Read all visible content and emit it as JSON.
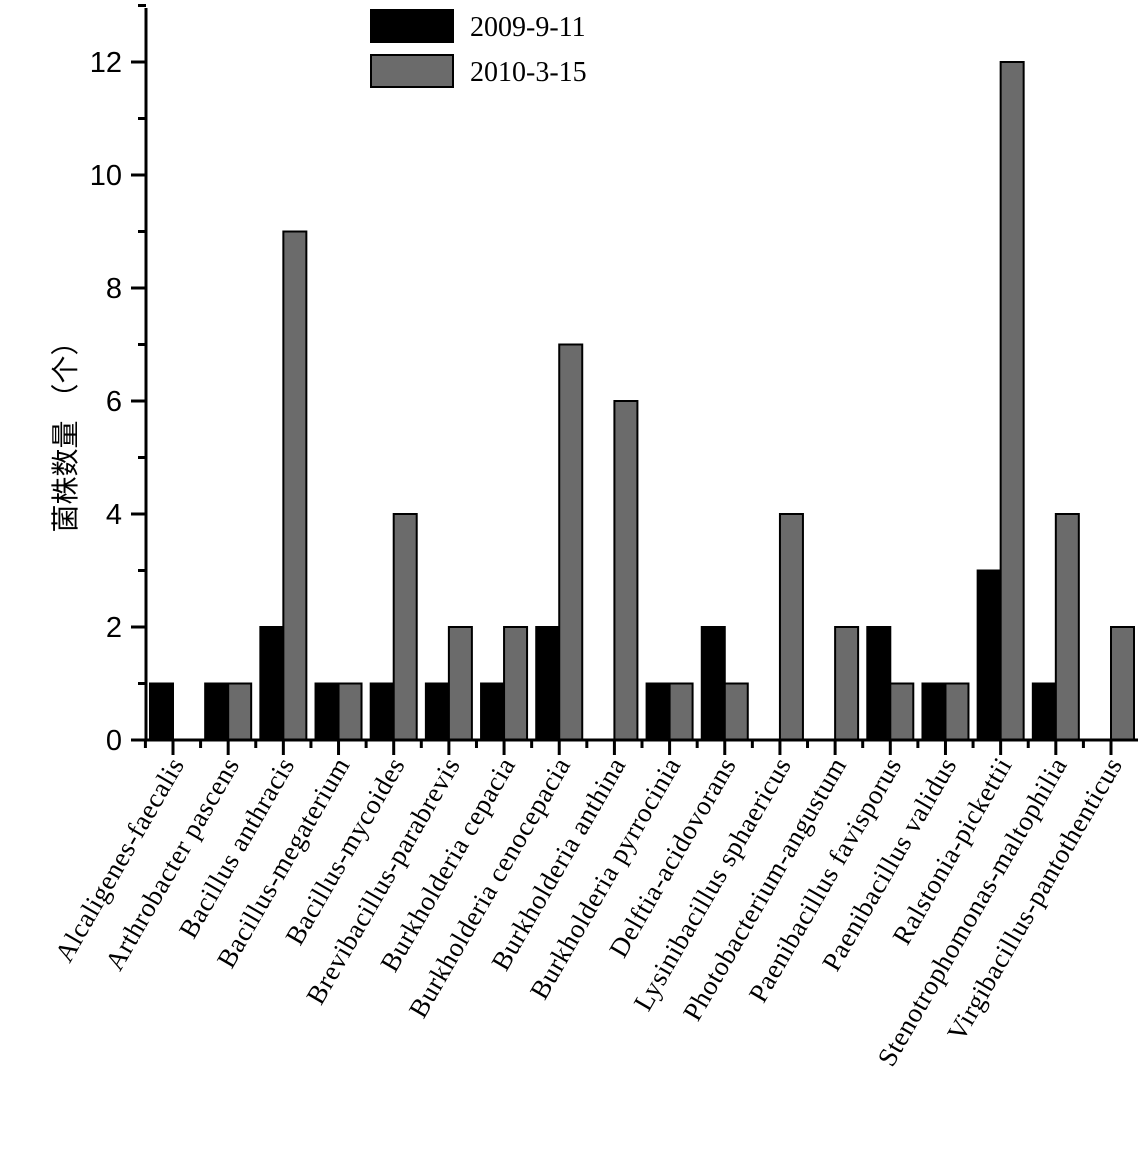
{
  "chart_data": {
    "type": "bar",
    "title": "",
    "xlabel": "",
    "ylabel": "菌株数量 （个）",
    "ylim": [
      0,
      13
    ],
    "yticks": [
      0,
      2,
      4,
      6,
      8,
      10,
      12
    ],
    "yminor_step": 1,
    "grid": false,
    "legend_position": "top-center",
    "categories": [
      "Alcaligenes-faecalis",
      "Arthrobacter pascens",
      "Bacillus anthracis",
      "Bacillus-megaterium",
      "Bacillus-mycoides",
      "Brevibacillus-parabrevis",
      "Burkholderia cepacia",
      "Burkholderia cenocepacia",
      "Burkholderia anthina",
      "Burkholderia pyrrocinia",
      "Delftia-acidovorans",
      "Lysinibacillus sphaericus",
      "Photobacterium-angustum",
      "Paenibacillus favisporus",
      "Paenibacillus validus",
      "Ralstonia-pickettii",
      "Stenotrophomonas-maltophilia",
      "Virgibacillus-pantothenticus"
    ],
    "series": [
      {
        "name": "2009-9-11",
        "color": "#000000",
        "values": [
          1,
          1,
          2,
          1,
          1,
          1,
          1,
          2,
          0,
          1,
          2,
          0,
          0,
          2,
          1,
          3,
          1,
          0
        ]
      },
      {
        "name": "2010-3-15",
        "color": "#6b6b6b",
        "values": [
          0,
          1,
          9,
          1,
          4,
          2,
          2,
          7,
          6,
          1,
          1,
          4,
          2,
          1,
          1,
          12,
          4,
          2
        ]
      }
    ]
  }
}
